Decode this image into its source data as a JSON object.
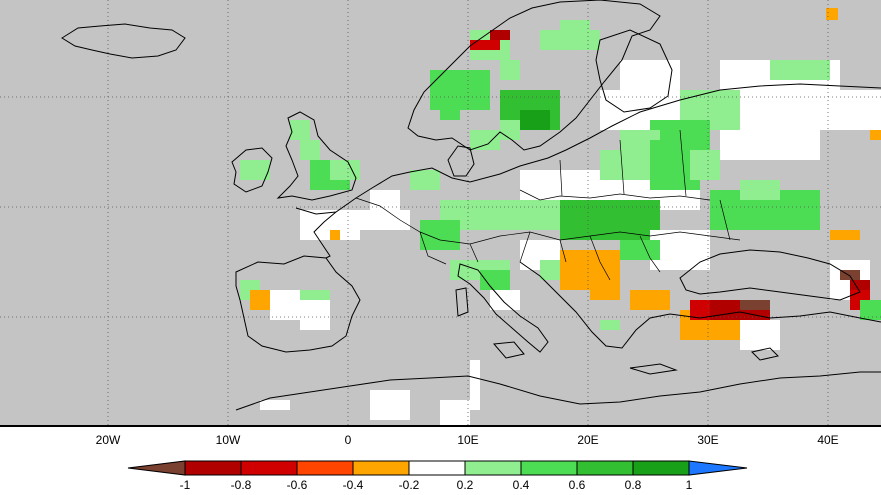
{
  "map": {
    "longitude_labels": [
      "20W",
      "10W",
      "0",
      "10E",
      "20E",
      "30E",
      "40E"
    ]
  },
  "legend": {
    "labels": [
      "-1",
      "-0.8",
      "-0.6",
      "-0.4",
      "-0.2",
      "0.2",
      "0.4",
      "0.6",
      "0.8",
      "1"
    ],
    "bins": [
      {
        "range": "< -1",
        "color": "#7a4030"
      },
      {
        "range": "-1 to -0.8",
        "color": "#b00000"
      },
      {
        "range": "-0.8 to -0.6",
        "color": "#d00000"
      },
      {
        "range": "-0.6 to -0.4",
        "color": "#ff4500"
      },
      {
        "range": "-0.4 to -0.2",
        "color": "#ffa500"
      },
      {
        "range": "-0.2 to 0.2",
        "color": "#ffffff"
      },
      {
        "range": "0.2 to 0.4",
        "color": "#90ee90"
      },
      {
        "range": "0.4 to 0.6",
        "color": "#4ddd55"
      },
      {
        "range": "0.6 to 0.8",
        "color": "#32c032"
      },
      {
        "range": "0.8 to 1",
        "color": "#18a018"
      },
      {
        "range": "> 1",
        "color": "#1e78ff"
      }
    ],
    "missing_color": "#c4c4c4"
  }
}
